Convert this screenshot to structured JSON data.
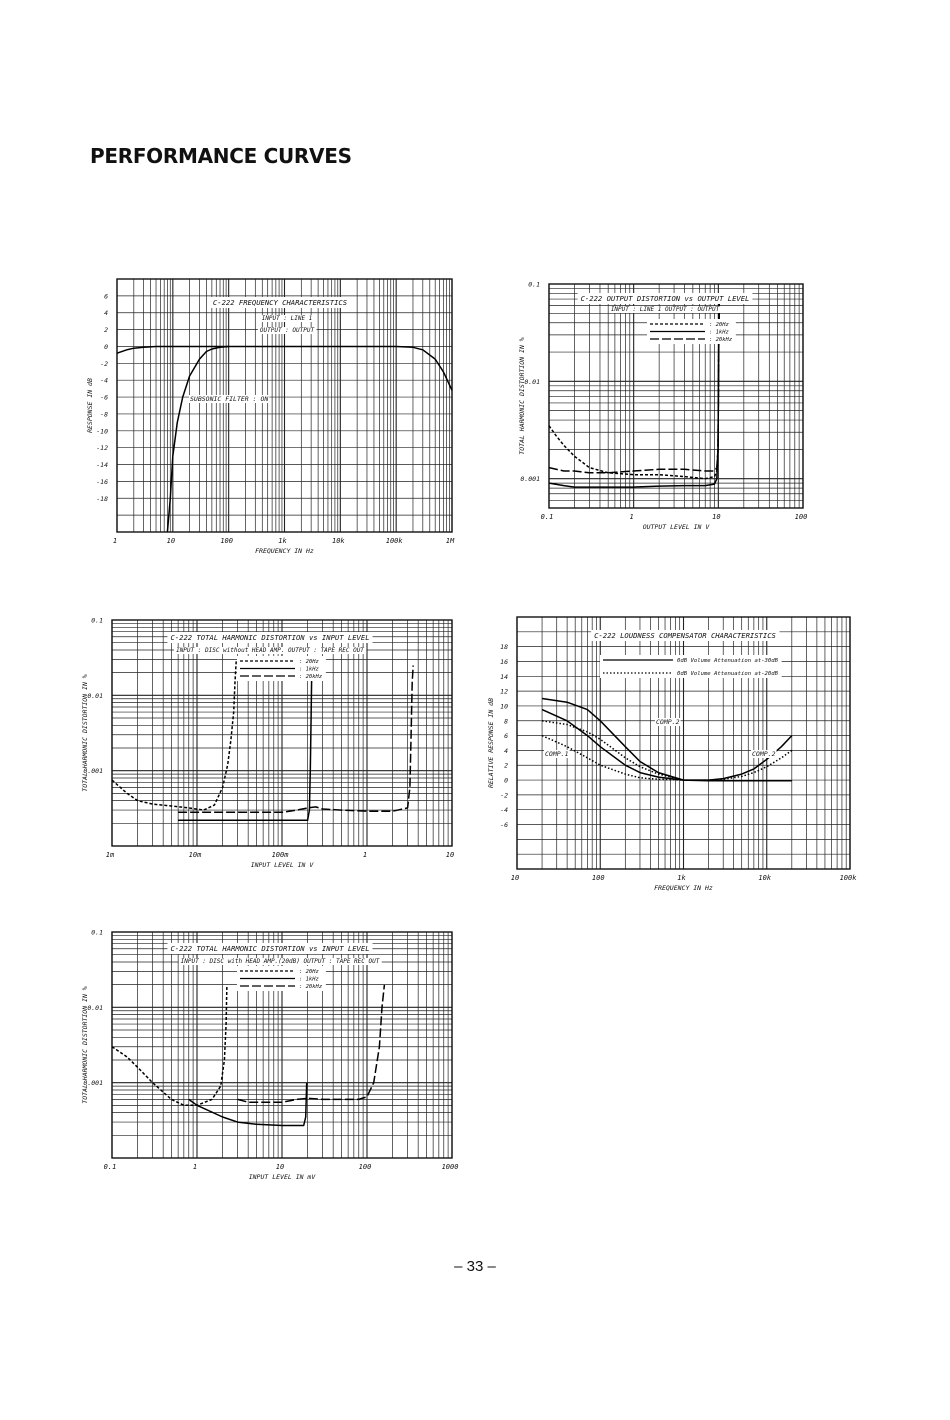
{
  "page": {
    "title": "PERFORMANCE CURVES",
    "page_number": "– 33 –"
  },
  "chart_data": [
    {
      "id": "freq",
      "type": "line",
      "title": "C-222 FREQUENCY CHARACTERISTICS",
      "notes": [
        "INPUT : LINE 1",
        "OUTPUT : OUTPUT"
      ],
      "annotations": [
        "SUBSONIC FILTER : ON"
      ],
      "xlabel": "FREQUENCY IN Hz",
      "ylabel": "RESPONSE IN dB",
      "x_scale": "log",
      "xlim": [
        1,
        1000000
      ],
      "x_ticks": [
        [
          1,
          "1"
        ],
        [
          10,
          "10"
        ],
        [
          100,
          "100"
        ],
        [
          1000,
          "1k"
        ],
        [
          10000,
          "10k"
        ],
        [
          100000,
          "100k"
        ],
        [
          1000000,
          "1M"
        ]
      ],
      "y_scale": "linear",
      "ylim": [
        -22,
        8
      ],
      "y_ticks": [
        [
          6,
          "6"
        ],
        [
          4,
          "4"
        ],
        [
          2,
          "2"
        ],
        [
          0,
          "0"
        ],
        [
          -2,
          "-2"
        ],
        [
          -4,
          "-4"
        ],
        [
          -6,
          "-6"
        ],
        [
          -8,
          "-8"
        ],
        [
          -10,
          "-10"
        ],
        [
          -12,
          "-12"
        ],
        [
          -14,
          "-14"
        ],
        [
          -16,
          "-16"
        ],
        [
          -18,
          "-18"
        ]
      ],
      "series": [
        {
          "style": "solid",
          "x": [
            1,
            1.5,
            2,
            3,
            5,
            10,
            20,
            50,
            100,
            1000,
            10000,
            100000,
            200000,
            300000,
            500000,
            700000,
            1000000
          ],
          "y": [
            -0.8,
            -0.4,
            -0.2,
            -0.1,
            0,
            0,
            0,
            0,
            0,
            0,
            0,
            0,
            -0.1,
            -0.4,
            -1.5,
            -3,
            -5.2
          ]
        },
        {
          "style": "solid",
          "x": [
            8,
            9,
            10,
            12,
            15,
            20,
            30,
            40,
            50,
            70,
            100
          ],
          "y": [
            -22,
            -18,
            -13,
            -9,
            -6,
            -3.5,
            -1.5,
            -0.6,
            -0.3,
            -0.1,
            0
          ]
        }
      ]
    },
    {
      "id": "outdist",
      "type": "line",
      "title": "C-222 OUTPUT DISTORTION vs OUTPUT LEVEL",
      "notes": [
        "INPUT : LINE 1  OUTPUT : OUTPUT"
      ],
      "legend_items": [
        [
          "dashed",
          ": 20Hz"
        ],
        [
          "solid",
          ": 1kHz"
        ],
        [
          "long-dash",
          ": 20kHz"
        ]
      ],
      "xlabel": "OUTPUT LEVEL IN V",
      "ylabel": "TOTAL HARMONIC DISTORTION IN %",
      "x_scale": "log",
      "xlim": [
        0.1,
        100
      ],
      "x_ticks": [
        [
          0.1,
          "0.1"
        ],
        [
          1,
          "1"
        ],
        [
          10,
          "10"
        ],
        [
          100,
          "100"
        ]
      ],
      "y_scale": "log",
      "ylim": [
        0.0005,
        0.1
      ],
      "y_ticks": [
        [
          0.1,
          "0.1"
        ],
        [
          0.01,
          "0.01"
        ],
        [
          0.001,
          "0.001"
        ]
      ],
      "series": [
        {
          "name": "20Hz",
          "style": "dashed",
          "x": [
            0.1,
            0.12,
            0.15,
            0.2,
            0.3,
            0.5,
            1,
            2,
            4,
            7,
            9,
            9.6,
            9.9,
            10,
            10.1,
            10.3
          ],
          "y": [
            0.0035,
            0.0028,
            0.0022,
            0.0017,
            0.0013,
            0.00115,
            0.0011,
            0.0011,
            0.00105,
            0.001,
            0.00105,
            0.0012,
            0.002,
            0.005,
            0.02,
            0.08
          ]
        },
        {
          "name": "1kHz",
          "style": "solid",
          "x": [
            0.1,
            0.15,
            0.2,
            0.3,
            0.5,
            1,
            2,
            4,
            7,
            9,
            9.6,
            9.9,
            10,
            10.1,
            10.3
          ],
          "y": [
            0.0009,
            0.00085,
            0.00082,
            0.00082,
            0.00082,
            0.00082,
            0.00084,
            0.00085,
            0.00085,
            0.00088,
            0.001,
            0.002,
            0.005,
            0.02,
            0.08
          ]
        },
        {
          "name": "20kHz",
          "style": "long-dash",
          "x": [
            0.1,
            0.15,
            0.2,
            0.3,
            0.5,
            1,
            2,
            4,
            7,
            9,
            9.6,
            9.9,
            10,
            10.1,
            10.3
          ],
          "y": [
            0.0013,
            0.0012,
            0.0012,
            0.00115,
            0.00115,
            0.0012,
            0.00125,
            0.00125,
            0.0012,
            0.0012,
            0.0013,
            0.002,
            0.005,
            0.02,
            0.08
          ]
        }
      ]
    },
    {
      "id": "discthd",
      "type": "line",
      "title": "C-222 TOTAL HARMONIC DISTORTION vs INPUT LEVEL",
      "notes": [
        "INPUT : DISC without HEAD AMP.   OUTPUT : TAPE REC OUT"
      ],
      "legend_items": [
        [
          "dashed",
          ": 20Hz"
        ],
        [
          "solid",
          ": 1kHz"
        ],
        [
          "long-dash",
          ": 20kHz"
        ]
      ],
      "xlabel": "INPUT LEVEL IN V",
      "ylabel": "TOTAL HARMONIC DISTORTION IN %",
      "x_scale": "log",
      "xlim": [
        0.001,
        10
      ],
      "x_ticks": [
        [
          0.001,
          "1m"
        ],
        [
          0.01,
          "10m"
        ],
        [
          0.1,
          "100m"
        ],
        [
          1,
          "1"
        ],
        [
          10,
          "10"
        ]
      ],
      "y_scale": "log",
      "ylim": [
        0.0001,
        0.1
      ],
      "y_ticks": [
        [
          0.1,
          "0.1"
        ],
        [
          0.01,
          "0.01"
        ],
        [
          0.001,
          "0.001"
        ]
      ],
      "series": [
        {
          "name": "20Hz",
          "style": "dashed",
          "x": [
            0.001,
            0.0015,
            0.002,
            0.003,
            0.005,
            0.008,
            0.012,
            0.016,
            0.02,
            0.023,
            0.025,
            0.027,
            0.028,
            0.029
          ],
          "y": [
            0.00075,
            0.0005,
            0.0004,
            0.00036,
            0.00034,
            0.00032,
            0.0003,
            0.00035,
            0.0006,
            0.0012,
            0.0025,
            0.006,
            0.015,
            0.03
          ]
        },
        {
          "name": "1kHz",
          "style": "solid",
          "x": [
            0.006,
            0.01,
            0.02,
            0.05,
            0.1,
            0.2,
            0.21,
            0.215,
            0.22,
            0.225
          ],
          "y": [
            0.00022,
            0.00022,
            0.00022,
            0.00022,
            0.00022,
            0.00022,
            0.0003,
            0.001,
            0.005,
            0.03
          ]
        },
        {
          "name": "20kHz",
          "style": "long-dash",
          "x": [
            0.006,
            0.01,
            0.02,
            0.05,
            0.1,
            0.15,
            0.2,
            0.25,
            0.3,
            0.5,
            1,
            2,
            3,
            3.2,
            3.3,
            3.4,
            3.5
          ],
          "y": [
            0.00028,
            0.00028,
            0.00028,
            0.00028,
            0.00028,
            0.0003,
            0.00032,
            0.00033,
            0.00031,
            0.0003,
            0.00029,
            0.00029,
            0.00032,
            0.0006,
            0.003,
            0.015,
            0.025
          ]
        }
      ]
    },
    {
      "id": "loud",
      "type": "line",
      "title": "C-222 LOUDNESS COMPENSATOR CHARACTERISTICS",
      "legend_items": [
        [
          "solid",
          "0dB Volume Attenuation at-30dB"
        ],
        [
          "dotted",
          "0dB Volume Attenuation at-20dB"
        ]
      ],
      "annotations": [
        "COMP.2",
        "COMP.1",
        "COMP.2"
      ],
      "xlabel": "FREQUENCY IN Hz",
      "ylabel": "RELATIVE RESPONSE IN dB",
      "x_scale": "log",
      "xlim": [
        10,
        100000
      ],
      "x_ticks": [
        [
          10,
          "10"
        ],
        [
          100,
          "100"
        ],
        [
          1000,
          "1k"
        ],
        [
          10000,
          "10k"
        ],
        [
          100000,
          "100k"
        ]
      ],
      "y_scale": "linear",
      "ylim": [
        -12,
        22
      ],
      "y_ticks": [
        [
          18,
          "18"
        ],
        [
          16,
          "16"
        ],
        [
          14,
          "14"
        ],
        [
          12,
          "12"
        ],
        [
          10,
          "10"
        ],
        [
          8,
          "8"
        ],
        [
          6,
          "6"
        ],
        [
          4,
          "4"
        ],
        [
          2,
          "2"
        ],
        [
          0,
          "0"
        ],
        [
          -2,
          "-2"
        ],
        [
          -4,
          "-4"
        ],
        [
          -6,
          "-6"
        ]
      ],
      "series": [
        {
          "name": "COMP.2 -30dB",
          "style": "solid",
          "x": [
            20,
            40,
            70,
            100,
            200,
            300,
            500,
            1000,
            2000,
            3000,
            5000,
            7000,
            10000,
            15000,
            20000
          ],
          "y": [
            11,
            10.5,
            9.5,
            8,
            4.5,
            2.5,
            1,
            0,
            0,
            0.2,
            0.8,
            1.5,
            2.8,
            4.5,
            6
          ]
        },
        {
          "name": "COMP.1 -30dB",
          "style": "solid",
          "x": [
            20,
            40,
            70,
            100,
            200,
            300,
            500,
            1000,
            2000,
            3000,
            5000,
            7000,
            10000,
            15000,
            20000
          ],
          "y": [
            9.5,
            8,
            6,
            4.5,
            2,
            1,
            0.4,
            0,
            -0.1,
            -0.1,
            -0.1,
            -0.1,
            -0.1,
            -0.1,
            -0.1
          ]
        },
        {
          "name": "COMP.2 -20dB",
          "style": "dotted",
          "x": [
            20,
            40,
            70,
            100,
            200,
            300,
            500,
            1000,
            2000,
            3000,
            5000,
            7000,
            10000,
            15000,
            20000
          ],
          "y": [
            8,
            7.5,
            6.5,
            5.5,
            3,
            1.8,
            0.8,
            0,
            0,
            0.1,
            0.5,
            1,
            1.8,
            3,
            4
          ]
        },
        {
          "name": "COMP.1 -20dB",
          "style": "dotted",
          "x": [
            20,
            40,
            70,
            100,
            200,
            300,
            500,
            1000,
            2000
          ],
          "y": [
            6,
            4.5,
            3,
            2,
            0.8,
            0.3,
            0.1,
            0,
            0
          ]
        }
      ]
    },
    {
      "id": "headthd",
      "type": "line",
      "title": "C-222 TOTAL HARMONIC DISTORTION vs INPUT LEVEL",
      "notes": [
        "INPUT : DISC with HEAD AMP.(20dB)  OUTPUT : TAPE REC OUT"
      ],
      "legend_items": [
        [
          "dashed",
          ": 20Hz"
        ],
        [
          "solid",
          ": 1kHz"
        ],
        [
          "long-dash",
          ": 20kHz"
        ]
      ],
      "xlabel": "INPUT LEVEL IN mV",
      "ylabel": "TOTAL HARMONIC DISTORTION IN %",
      "x_scale": "log",
      "xlim": [
        0.1,
        1000
      ],
      "x_ticks": [
        [
          0.1,
          "0.1"
        ],
        [
          1,
          "1"
        ],
        [
          10,
          "10"
        ],
        [
          100,
          "100"
        ],
        [
          1000,
          "1000"
        ]
      ],
      "y_scale": "log",
      "ylim": [
        0.0001,
        0.1
      ],
      "y_ticks": [
        [
          0.1,
          "0.1"
        ],
        [
          0.01,
          "0.01"
        ],
        [
          0.001,
          "0.001"
        ]
      ],
      "series": [
        {
          "name": "20Hz",
          "style": "dashed",
          "x": [
            0.1,
            0.15,
            0.2,
            0.3,
            0.5,
            0.7,
            1,
            1.5,
            1.9,
            2.1,
            2.2,
            2.25
          ],
          "y": [
            0.003,
            0.0022,
            0.0016,
            0.001,
            0.0006,
            0.0005,
            0.0005,
            0.0006,
            0.0009,
            0.002,
            0.006,
            0.02
          ]
        },
        {
          "name": "1kHz",
          "style": "solid",
          "x": [
            0.8,
            1,
            2,
            3,
            5,
            10,
            15,
            18,
            19,
            19.5
          ],
          "y": [
            0.0006,
            0.0005,
            0.00035,
            0.0003,
            0.00028,
            0.00027,
            0.00027,
            0.00027,
            0.00035,
            0.001
          ]
        },
        {
          "name": "20kHz",
          "style": "long-dash",
          "x": [
            3,
            4,
            6,
            10,
            15,
            20,
            30,
            50,
            80,
            100,
            120,
            140,
            150,
            160
          ],
          "y": [
            0.0006,
            0.00055,
            0.00055,
            0.00055,
            0.0006,
            0.00062,
            0.0006,
            0.0006,
            0.0006,
            0.00065,
            0.001,
            0.003,
            0.01,
            0.02
          ]
        }
      ]
    }
  ]
}
